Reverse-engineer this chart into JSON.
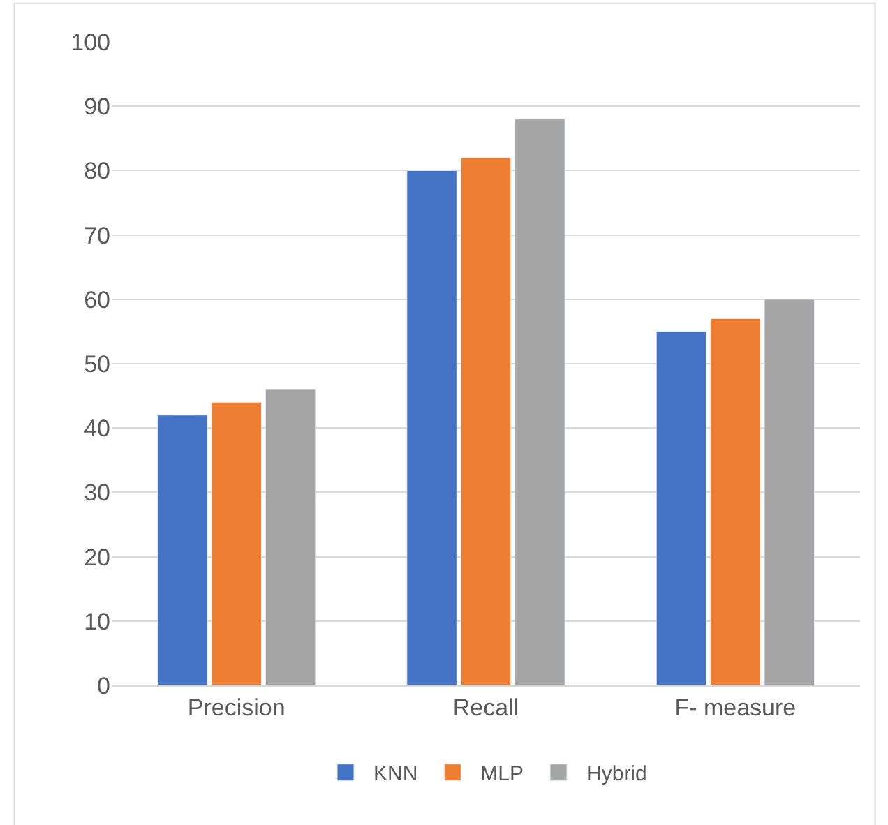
{
  "chart_data": {
    "type": "bar",
    "categories": [
      "Precision",
      "Recall",
      "F- measure"
    ],
    "series": [
      {
        "name": "KNN",
        "color": "#4472c4",
        "values": [
          42,
          80,
          55
        ]
      },
      {
        "name": "MLP",
        "color": "#ed7d31",
        "values": [
          44,
          82,
          57
        ]
      },
      {
        "name": "Hybrid",
        "color": "#a5a5a5",
        "values": [
          46,
          88,
          60
        ]
      }
    ],
    "ylim": [
      0,
      100
    ],
    "yticks": [
      0,
      10,
      20,
      30,
      40,
      50,
      60,
      70,
      80,
      90,
      100
    ],
    "grid": "y",
    "legend": "bottom"
  }
}
